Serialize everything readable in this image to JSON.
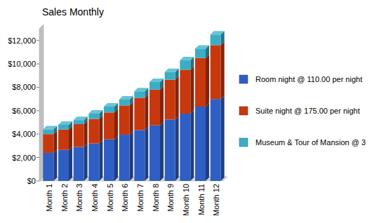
{
  "chart_data": {
    "type": "bar",
    "title": "Sales Monthly",
    "stacked": true,
    "grid": false,
    "legend": "right",
    "categories": [
      "Month 1",
      "Month 2",
      "Month 3",
      "Month 4",
      "Month 5",
      "Month 6",
      "Month 7",
      "Month 8",
      "Month 9",
      "Month 10",
      "Month 11",
      "Month 12"
    ],
    "series": [
      {
        "name": "Room night @ 110.00 per night",
        "color": "#2f5fc4",
        "values": [
          2400,
          2650,
          2900,
          3200,
          3550,
          3950,
          4350,
          4750,
          5250,
          5750,
          6350,
          7000
        ]
      },
      {
        "name": "Suite night @ 175.00 per night",
        "color": "#c8380e",
        "values": [
          1600,
          1750,
          1950,
          2100,
          2300,
          2500,
          2750,
          3050,
          3400,
          3750,
          4150,
          4600
        ]
      },
      {
        "name": "Museum & Tour of Mansion @ 3",
        "color": "#3aaec6",
        "values": [
          400,
          400,
          350,
          450,
          500,
          500,
          550,
          650,
          650,
          800,
          800,
          900
        ]
      }
    ],
    "ylim": [
      0,
      13000
    ],
    "yticks": [
      {
        "value": 0,
        "label": "$0"
      },
      {
        "value": 2000,
        "label": "$2,000"
      },
      {
        "value": 4000,
        "label": "$4,000"
      },
      {
        "value": 6000,
        "label": "$6,000"
      },
      {
        "value": 8000,
        "label": "$8,000"
      },
      {
        "value": 10000,
        "label": "$10,000"
      },
      {
        "value": 12000,
        "label": "$12,000"
      }
    ]
  }
}
